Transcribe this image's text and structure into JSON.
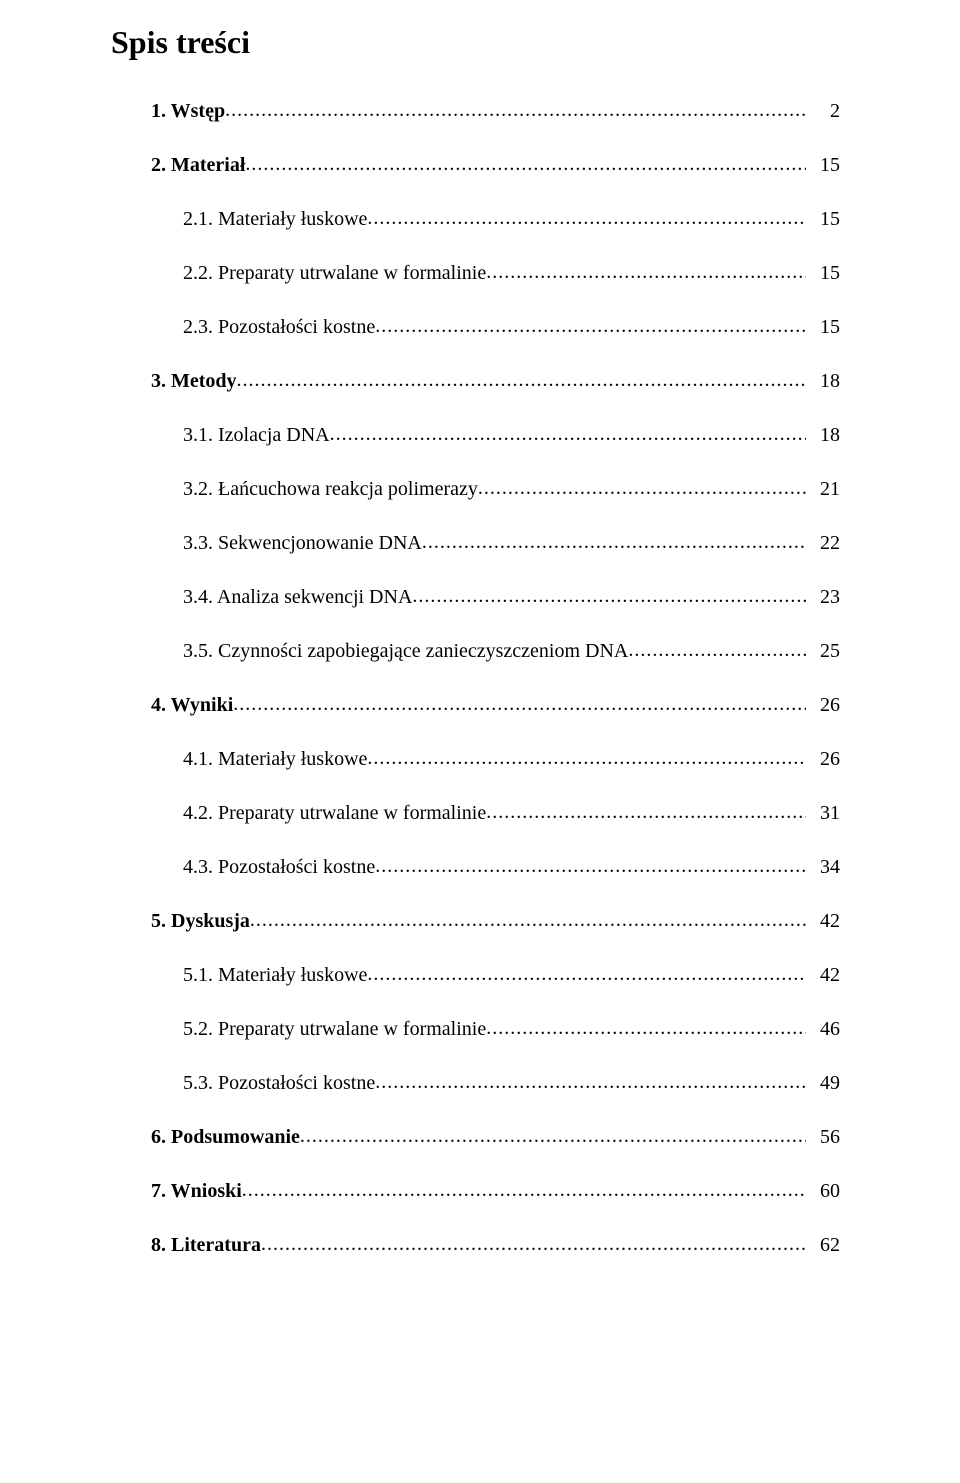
{
  "title": "Spis treści",
  "entries": [
    {
      "level": 1,
      "bold": true,
      "label": "1. Wstęp",
      "page": "2"
    },
    {
      "level": 1,
      "bold": true,
      "label": "2. Materiał",
      "page": "15"
    },
    {
      "level": 2,
      "bold": false,
      "label": "2.1. Materiały łuskowe",
      "page": "15"
    },
    {
      "level": 2,
      "bold": false,
      "label": "2.2. Preparaty utrwalane w formalinie",
      "page": "15"
    },
    {
      "level": 2,
      "bold": false,
      "label": "2.3. Pozostałości kostne",
      "page": "15"
    },
    {
      "level": 1,
      "bold": true,
      "label": "3. Metody",
      "page": "18"
    },
    {
      "level": 2,
      "bold": false,
      "label": "3.1. Izolacja DNA",
      "page": "18"
    },
    {
      "level": 2,
      "bold": false,
      "label": "3.2. Łańcuchowa reakcja polimerazy",
      "page": "21"
    },
    {
      "level": 2,
      "bold": false,
      "label": "3.3. Sekwencjonowanie DNA",
      "page": "22"
    },
    {
      "level": 2,
      "bold": false,
      "label": "3.4. Analiza sekwencji DNA",
      "page": "23"
    },
    {
      "level": 2,
      "bold": false,
      "label": "3.5. Czynności zapobiegające zanieczyszczeniom DNA",
      "page": "25"
    },
    {
      "level": 1,
      "bold": true,
      "label": "4. Wyniki",
      "page": "26"
    },
    {
      "level": 2,
      "bold": false,
      "label": "4.1. Materiały łuskowe",
      "page": "26"
    },
    {
      "level": 2,
      "bold": false,
      "label": "4.2. Preparaty utrwalane w formalinie",
      "page": "31"
    },
    {
      "level": 2,
      "bold": false,
      "label": "4.3. Pozostałości kostne",
      "page": "34"
    },
    {
      "level": 1,
      "bold": true,
      "label": "5. Dyskusja",
      "page": "42"
    },
    {
      "level": 2,
      "bold": false,
      "label": "5.1. Materiały łuskowe",
      "page": "42"
    },
    {
      "level": 2,
      "bold": false,
      "label": "5.2. Preparaty utrwalane w formalinie",
      "page": "46"
    },
    {
      "level": 2,
      "bold": false,
      "label": "5.3. Pozostałości kostne",
      "page": "49"
    },
    {
      "level": 1,
      "bold": true,
      "label": "6. Podsumowanie",
      "page": "56"
    },
    {
      "level": 1,
      "bold": true,
      "label": "7. Wnioski",
      "page": "60"
    },
    {
      "level": 1,
      "bold": true,
      "label": "8. Literatura",
      "page": "62"
    }
  ]
}
